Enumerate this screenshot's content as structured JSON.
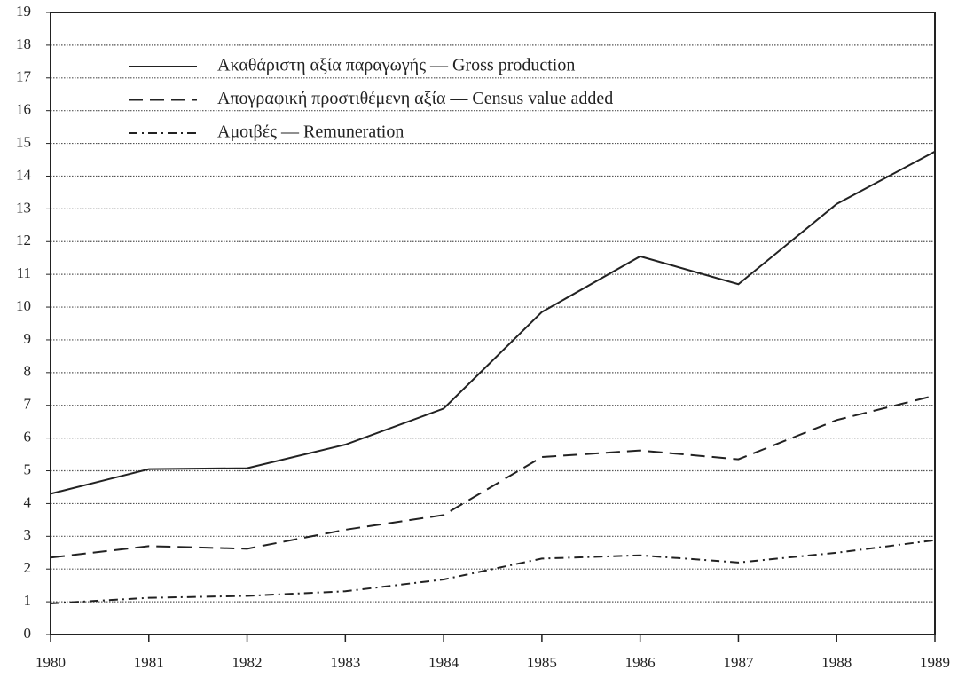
{
  "chart_data": {
    "type": "line",
    "x": [
      1980,
      1981,
      1982,
      1983,
      1984,
      1985,
      1986,
      1987,
      1988,
      1989
    ],
    "xlim": [
      1980,
      1989
    ],
    "xticks": [
      1980,
      1981,
      1982,
      1983,
      1984,
      1985,
      1986,
      1987,
      1988,
      1989
    ],
    "ylim": [
      0,
      19
    ],
    "yticks": [
      0,
      1,
      2,
      3,
      4,
      5,
      6,
      7,
      8,
      9,
      10,
      11,
      12,
      13,
      14,
      15,
      16,
      17,
      18,
      19
    ],
    "grid": true,
    "legend": "upper left",
    "series": [
      {
        "name": "Ακαθάριστη αξία παραγωγής — Gross production",
        "color": "#222222",
        "line_style": "solid",
        "values": [
          4.3,
          5.05,
          5.08,
          5.8,
          6.9,
          9.85,
          11.55,
          10.7,
          13.15,
          14.75
        ]
      },
      {
        "name": "Απογραφική προστιθέμενη αξία — Census value added",
        "color": "#222222",
        "line_style": "dashed",
        "values": [
          2.35,
          2.7,
          2.62,
          3.2,
          3.65,
          5.42,
          5.62,
          5.35,
          6.55,
          7.3
        ]
      },
      {
        "name": "Αμοιβές — Remuneration",
        "color": "#222222",
        "line_style": "dashdot",
        "values": [
          0.95,
          1.12,
          1.18,
          1.32,
          1.68,
          2.32,
          2.42,
          2.2,
          2.5,
          2.88
        ]
      }
    ]
  }
}
